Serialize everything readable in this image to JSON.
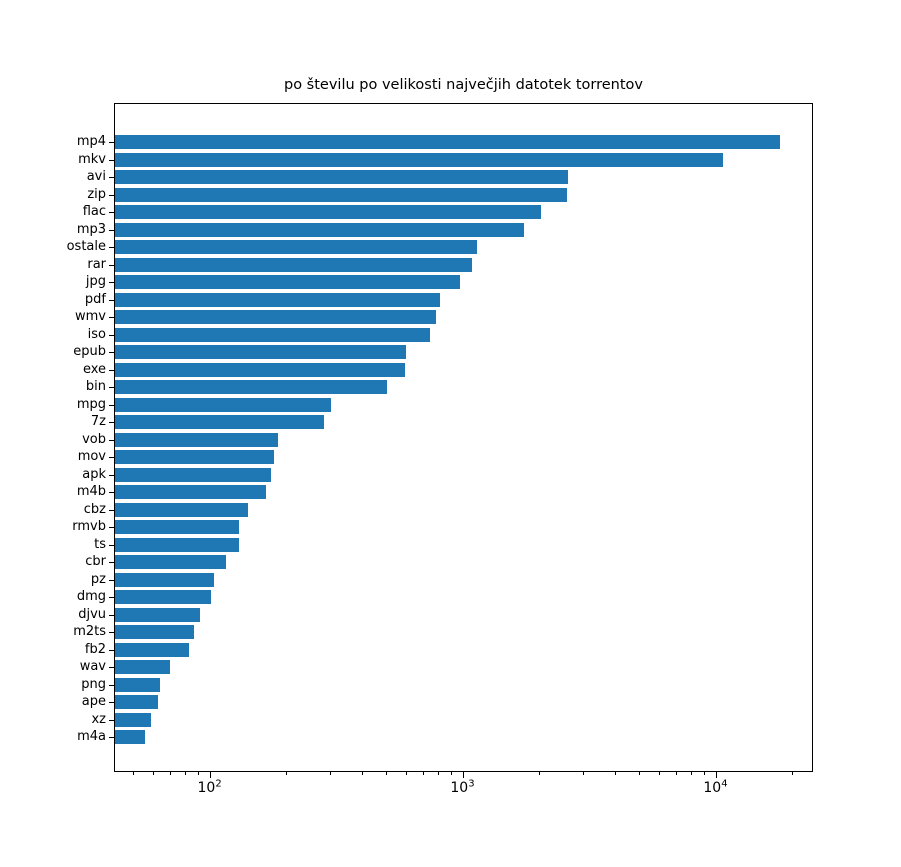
{
  "figure": {
    "background": "#ffffff",
    "axis_color": "#000000",
    "text_color": "#000000"
  },
  "chart_data": {
    "type": "bar",
    "orientation": "horizontal",
    "title": "po številu po velikosti največjih datotek torrentov",
    "xlabel": "",
    "ylabel": "",
    "grid": false,
    "legend": null,
    "xscale": "log",
    "xlim": [
      41.9,
      24300
    ],
    "x_major_ticks": [
      100,
      1000,
      10000
    ],
    "x_major_tick_labels": [
      "10^2",
      "10^3",
      "10^4"
    ],
    "bar_color": "#1f77b4",
    "categories": [
      "mp4",
      "mkv",
      "avi",
      "zip",
      "flac",
      "mp3",
      "ostale",
      "rar",
      "jpg",
      "pdf",
      "wmv",
      "iso",
      "epub",
      "exe",
      "bin",
      "mpg",
      "7z",
      "vob",
      "mov",
      "apk",
      "m4b",
      "cbz",
      "rmvb",
      "ts",
      "cbr",
      "pz",
      "dmg",
      "djvu",
      "m2ts",
      "fb2",
      "wav",
      "png",
      "ape",
      "xz",
      "m4a"
    ],
    "values": [
      17900,
      10650,
      2580,
      2560,
      2030,
      1740,
      1130,
      1080,
      965,
      810,
      775,
      740,
      590,
      585,
      500,
      300,
      280,
      184,
      178,
      173,
      166,
      141,
      130,
      129,
      115,
      103,
      100,
      91,
      86,
      82,
      69,
      63,
      62,
      58,
      55
    ]
  }
}
